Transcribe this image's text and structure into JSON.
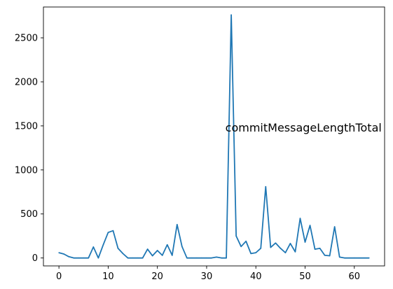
{
  "chart_data": {
    "type": "line",
    "title": "",
    "xlabel": "",
    "ylabel": "",
    "xlim": [
      -3.15,
      66.15
    ],
    "ylim": [
      -90,
      2850
    ],
    "xticks": [
      0,
      10,
      20,
      30,
      40,
      50,
      60
    ],
    "yticks": [
      0,
      500,
      1000,
      1500,
      2000,
      2500
    ],
    "grid": false,
    "annotation": {
      "text": "commitMessageLengthTotal",
      "x": 33.8,
      "y": 1485
    },
    "series": [
      {
        "color": "#1f77b4",
        "x": [
          0,
          1,
          2,
          3,
          4,
          5,
          6,
          7,
          8,
          9,
          10,
          11,
          12,
          13,
          14,
          15,
          16,
          17,
          18,
          19,
          20,
          21,
          22,
          23,
          24,
          25,
          26,
          27,
          28,
          29,
          30,
          31,
          32,
          33,
          34,
          35,
          36,
          37,
          38,
          39,
          40,
          41,
          42,
          43,
          44,
          45,
          46,
          47,
          48,
          49,
          50,
          51,
          52,
          53,
          54,
          55,
          56,
          57,
          58,
          59,
          60,
          61,
          62,
          63
        ],
        "values": [
          60,
          45,
          15,
          0,
          0,
          0,
          0,
          125,
          0,
          150,
          290,
          310,
          110,
          50,
          0,
          0,
          0,
          0,
          100,
          25,
          85,
          30,
          150,
          30,
          380,
          130,
          0,
          0,
          0,
          0,
          0,
          0,
          10,
          0,
          0,
          2760,
          250,
          130,
          190,
          50,
          60,
          110,
          810,
          120,
          170,
          110,
          60,
          165,
          70,
          450,
          180,
          370,
          100,
          110,
          30,
          25,
          355,
          10,
          0,
          0,
          0,
          0,
          0,
          0
        ]
      }
    ]
  }
}
